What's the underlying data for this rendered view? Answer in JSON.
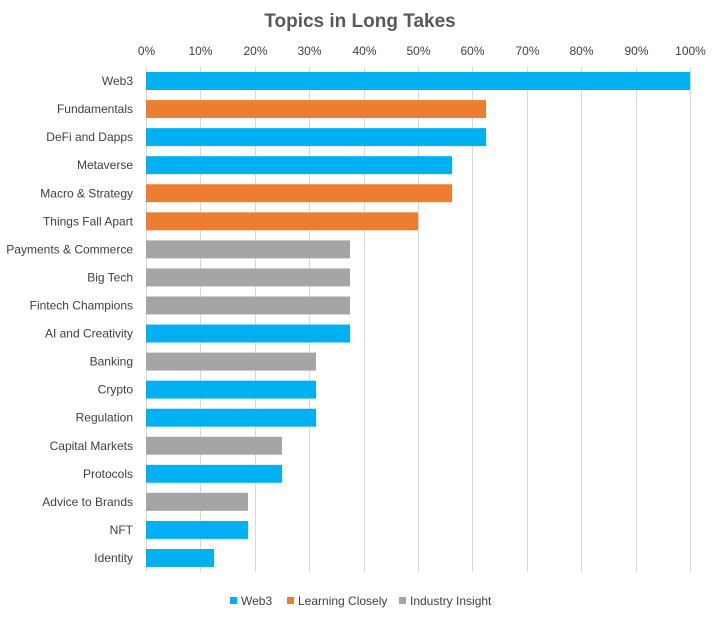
{
  "chart_data": {
    "type": "bar",
    "orientation": "horizontal",
    "title": "Topics in Long Takes",
    "xlabel": "",
    "ylabel": "",
    "xlim": [
      0,
      1
    ],
    "x_ticks": [
      "0%",
      "10%",
      "20%",
      "30%",
      "40%",
      "50%",
      "60%",
      "70%",
      "80%",
      "90%",
      "100%"
    ],
    "grid": "vertical",
    "legend_position": "bottom",
    "axis_position": "top",
    "series": [
      {
        "name": "Web3",
        "color": "#00b0f0"
      },
      {
        "name": "Learning Closely",
        "color": "#ed7d31"
      },
      {
        "name": "Industry Insight",
        "color": "#a5a5a5"
      }
    ],
    "categories": [
      "Web3",
      "Fundamentals",
      "DeFi and Dapps",
      "Metaverse",
      "Macro & Strategy",
      "Things Fall Apart",
      "Payments & Commerce",
      "Big Tech",
      "Fintech Champions",
      "AI and Creativity",
      "Banking",
      "Crypto",
      "Regulation",
      "Capital Markets",
      "Protocols",
      "Advice to Brands",
      "NFT",
      "Identity"
    ],
    "values": [
      1.0,
      0.625,
      0.625,
      0.5625,
      0.5625,
      0.5,
      0.375,
      0.375,
      0.375,
      0.375,
      0.3125,
      0.3125,
      0.3125,
      0.25,
      0.25,
      0.1875,
      0.1875,
      0.125
    ],
    "bar_series": [
      "Web3",
      "Learning Closely",
      "Web3",
      "Web3",
      "Learning Closely",
      "Learning Closely",
      "Industry Insight",
      "Industry Insight",
      "Industry Insight",
      "Web3",
      "Industry Insight",
      "Web3",
      "Web3",
      "Industry Insight",
      "Web3",
      "Industry Insight",
      "Web3",
      "Web3"
    ]
  }
}
